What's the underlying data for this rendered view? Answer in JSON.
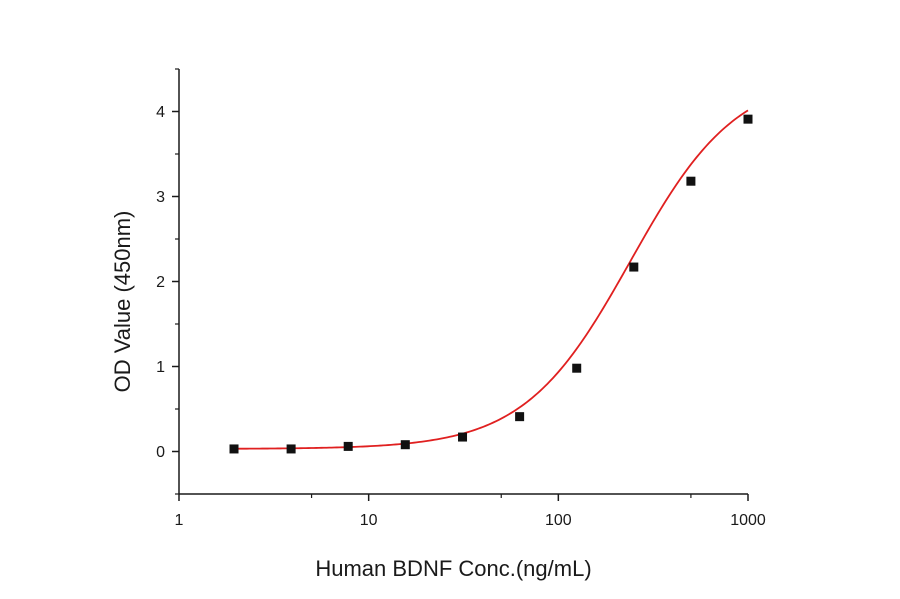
{
  "chart_data": {
    "type": "scatter",
    "xlabel": "Human BDNF Conc.(ng/mL)",
    "ylabel": "OD Value (450nm)",
    "x_scale": "log",
    "xlim": [
      1,
      1000
    ],
    "ylim": [
      -0.5,
      4.5
    ],
    "x_ticks": [
      1,
      10,
      100,
      1000
    ],
    "x_tick_labels": [
      "1",
      "10",
      "100",
      "1000"
    ],
    "y_ticks": [
      0,
      1,
      2,
      3,
      4
    ],
    "y_tick_labels": [
      "0",
      "1",
      "2",
      "3",
      "4"
    ],
    "grid": false,
    "legend": "none",
    "series": [
      {
        "marker": "square",
        "color": "#111111",
        "x": [
          1.95,
          3.9,
          7.8,
          15.6,
          31.25,
          62.5,
          125,
          250,
          500,
          1000
        ],
        "y": [
          0.03,
          0.03,
          0.06,
          0.08,
          0.17,
          0.41,
          0.98,
          2.17,
          3.18,
          3.91
        ]
      }
    ],
    "fit_curve": {
      "type": "4PL",
      "color": "#e02020",
      "bottom": 0.03,
      "top": 4.45,
      "ec50": 240,
      "hill": 1.55
    }
  }
}
